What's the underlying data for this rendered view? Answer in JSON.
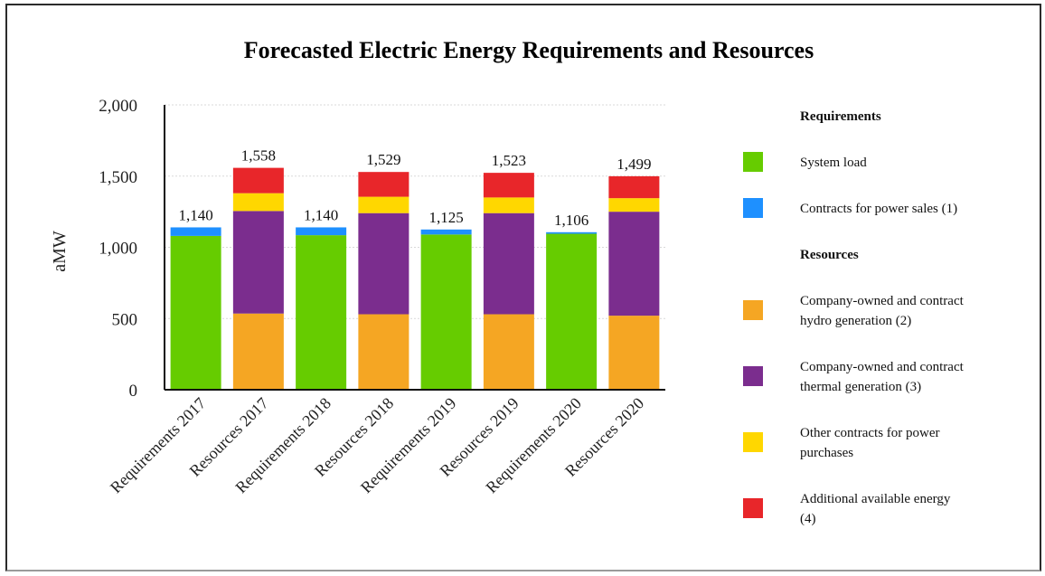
{
  "chart_data": {
    "type": "bar",
    "stacked": true,
    "title": "Forecasted Electric Energy Requirements and Resources",
    "ylabel": "aMW",
    "xlabel": "",
    "ylim": [
      0,
      2000
    ],
    "yticks": [
      0,
      500,
      1000,
      1500,
      2000
    ],
    "ytick_labels": [
      "0",
      "500",
      "1,000",
      "1,500",
      "2,000"
    ],
    "grid": true,
    "legend_position": "right",
    "categories": [
      "Requirements 2017",
      "Resources 2017",
      "Requirements 2018",
      "Resources 2018",
      "Requirements 2019",
      "Resources 2019",
      "Requirements 2020",
      "Resources 2020"
    ],
    "totals": [
      1140,
      1558,
      1140,
      1529,
      1125,
      1523,
      1106,
      1499
    ],
    "total_labels": [
      "1,140",
      "1,558",
      "1,140",
      "1,529",
      "1,125",
      "1,523",
      "1,106",
      "1,499"
    ],
    "series": [
      {
        "name": "System load",
        "group": "Requirements",
        "color": "#66cc00",
        "values": [
          1080,
          0,
          1085,
          0,
          1090,
          0,
          1095,
          0
        ]
      },
      {
        "name": "Contracts for power sales (1)",
        "group": "Requirements",
        "color": "#1e90ff",
        "values": [
          60,
          0,
          55,
          0,
          35,
          0,
          11,
          0
        ]
      },
      {
        "name": "Company-owned and contract hydro generation (2)",
        "group": "Resources",
        "color": "#f5a623",
        "values": [
          0,
          535,
          0,
          530,
          0,
          530,
          0,
          520
        ]
      },
      {
        "name": "Company-owned and contract thermal generation (3)",
        "group": "Resources",
        "color": "#7b2d8e",
        "values": [
          0,
          720,
          0,
          710,
          0,
          710,
          0,
          730
        ]
      },
      {
        "name": "Other contracts for power purchases",
        "group": "Resources",
        "color": "#ffd700",
        "values": [
          0,
          125,
          0,
          115,
          0,
          110,
          0,
          95
        ]
      },
      {
        "name": "Additional available energy (4)",
        "group": "Resources",
        "color": "#e8262a",
        "values": [
          0,
          178,
          0,
          174,
          0,
          173,
          0,
          154
        ]
      }
    ],
    "legend": {
      "groups": [
        {
          "heading": "Requirements",
          "items": [
            {
              "lines": [
                "System load"
              ],
              "color": "#66cc00"
            },
            {
              "lines": [
                "Contracts for power sales (1)"
              ],
              "color": "#1e90ff"
            }
          ]
        },
        {
          "heading": "Resources",
          "items": [
            {
              "lines": [
                "Company-owned and contract",
                "hydro generation (2)"
              ],
              "color": "#f5a623"
            },
            {
              "lines": [
                "Company-owned and contract",
                "thermal generation (3)"
              ],
              "color": "#7b2d8e"
            },
            {
              "lines": [
                "Other contracts for power",
                "purchases"
              ],
              "color": "#ffd700"
            },
            {
              "lines": [
                "Additional available energy",
                "(4)"
              ],
              "color": "#e8262a"
            }
          ]
        }
      ]
    }
  }
}
